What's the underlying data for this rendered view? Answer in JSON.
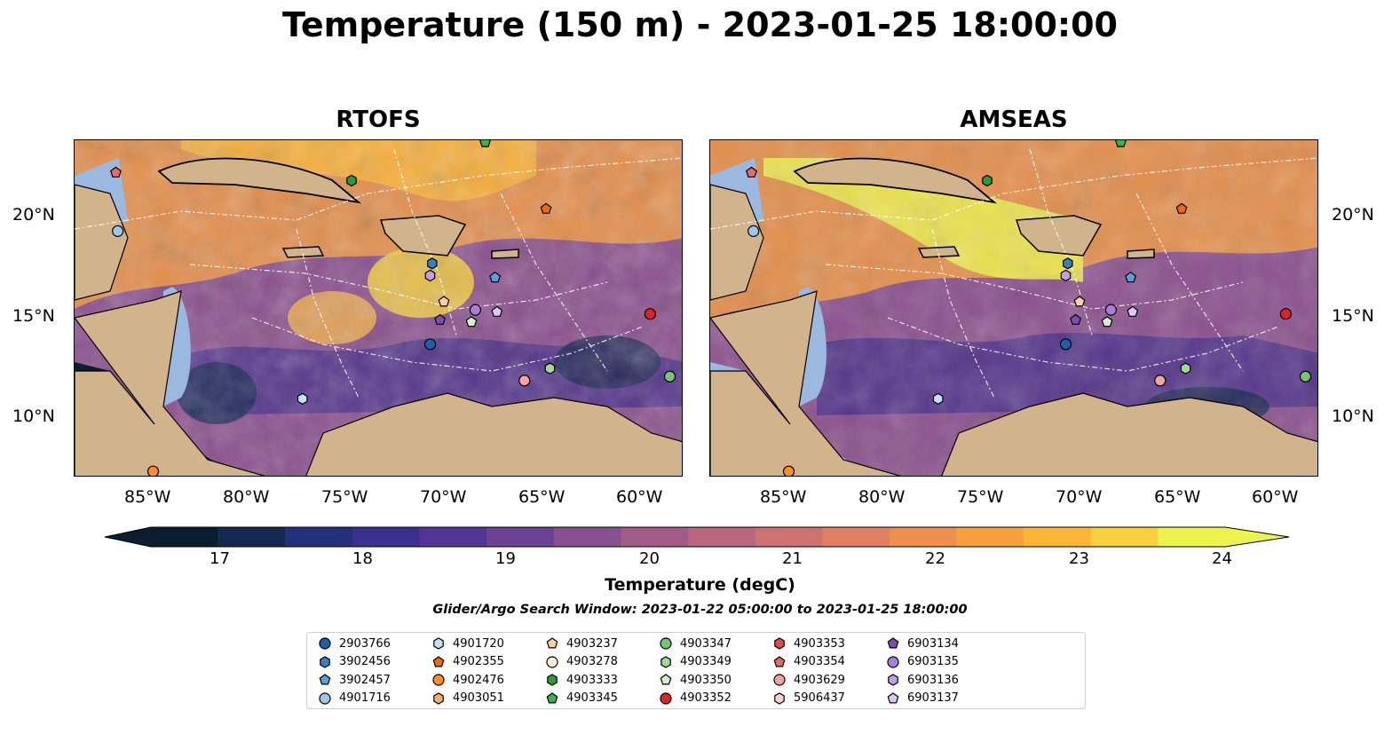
{
  "title": "Temperature (150 m) - 2023-01-25 18:00:00",
  "panels": [
    {
      "title": "RTOFS",
      "lon_ticks": [
        "85°W",
        "80°W",
        "75°W",
        "70°W",
        "65°W",
        "60°W"
      ],
      "lat_ticks": [
        "20°N",
        "15°N",
        "10°N"
      ]
    },
    {
      "title": "AMSEAS",
      "lon_ticks": [
        "85°W",
        "80°W",
        "75°W",
        "70°W",
        "65°W",
        "60°W"
      ],
      "lat_ticks": [
        "20°N",
        "15°N",
        "10°N"
      ]
    }
  ],
  "map_extent": {
    "lon": [
      -89,
      -58
    ],
    "lat": [
      7,
      23.7
    ]
  },
  "colorbar": {
    "label": "Temperature (degC)",
    "min": 17,
    "max": 24,
    "tick_labels": [
      "17",
      "18",
      "19",
      "20",
      "21",
      "22",
      "23",
      "24"
    ],
    "extend": "both"
  },
  "search_window": "Glider/Argo Search Window: 2023-01-22 05:00:00 to 2023-01-25 18:00:00",
  "legend": [
    {
      "id": "2903766",
      "marker": "circle",
      "color": "#1f5fa8"
    },
    {
      "id": "3902456",
      "marker": "hexagon",
      "color": "#3a7fc4"
    },
    {
      "id": "3902457",
      "marker": "pentagon",
      "color": "#5a9fd6"
    },
    {
      "id": "4901716",
      "marker": "circle",
      "color": "#9dc8ec"
    },
    {
      "id": "4901720",
      "marker": "hexagon",
      "color": "#c5e0f5"
    },
    {
      "id": "4902355",
      "marker": "pentagon",
      "color": "#f26a0a"
    },
    {
      "id": "4902476",
      "marker": "circle",
      "color": "#fd8d2c"
    },
    {
      "id": "4903051",
      "marker": "hexagon",
      "color": "#fdae6b"
    },
    {
      "id": "4903237",
      "marker": "pentagon",
      "color": "#fdd0a2"
    },
    {
      "id": "4903278",
      "marker": "circle",
      "color": "#feead6"
    },
    {
      "id": "4903333",
      "marker": "hexagon",
      "color": "#2a9d38"
    },
    {
      "id": "4903345",
      "marker": "pentagon",
      "color": "#3cb44b"
    },
    {
      "id": "4903347",
      "marker": "circle",
      "color": "#74c476"
    },
    {
      "id": "4903349",
      "marker": "hexagon",
      "color": "#a1d99b"
    },
    {
      "id": "4903350",
      "marker": "pentagon",
      "color": "#d1f0cc"
    },
    {
      "id": "4903352",
      "marker": "circle",
      "color": "#d62728"
    },
    {
      "id": "4903353",
      "marker": "hexagon",
      "color": "#e04b4b"
    },
    {
      "id": "4903354",
      "marker": "pentagon",
      "color": "#e96c6c"
    },
    {
      "id": "4903629",
      "marker": "circle",
      "color": "#f4a3a3"
    },
    {
      "id": "5906437",
      "marker": "hexagon",
      "color": "#fbd0d0"
    },
    {
      "id": "6903134",
      "marker": "pentagon",
      "color": "#7a4fb0"
    },
    {
      "id": "6903135",
      "marker": "circle",
      "color": "#a67fd6"
    },
    {
      "id": "6903136",
      "marker": "hexagon",
      "color": "#c0a0e6"
    },
    {
      "id": "6903137",
      "marker": "pentagon",
      "color": "#ddc8f6"
    }
  ],
  "platforms": [
    {
      "id": "2903766",
      "lon": -70.9,
      "lat": 13.6
    },
    {
      "id": "3902456",
      "lon": -70.8,
      "lat": 17.6
    },
    {
      "id": "3902457",
      "lon": -67.6,
      "lat": 16.9
    },
    {
      "id": "4901716",
      "lon": -86.8,
      "lat": 19.2
    },
    {
      "id": "4901720",
      "lon": -77.4,
      "lat": 10.9
    },
    {
      "id": "4902355",
      "lon": -65.0,
      "lat": 20.3
    },
    {
      "id": "4902476",
      "lon": -85.0,
      "lat": 7.3
    },
    {
      "id": "4903237",
      "lon": -70.2,
      "lat": 15.7
    },
    {
      "id": "4903333",
      "lon": -74.9,
      "lat": 21.7
    },
    {
      "id": "4903345",
      "lon": -68.1,
      "lat": 23.6
    },
    {
      "id": "4903347",
      "lon": -58.7,
      "lat": 12.0
    },
    {
      "id": "4903349",
      "lon": -64.8,
      "lat": 12.4
    },
    {
      "id": "4903350",
      "lon": -68.8,
      "lat": 14.7
    },
    {
      "id": "4903352",
      "lon": -59.7,
      "lat": 15.1
    },
    {
      "id": "4903354",
      "lon": -86.9,
      "lat": 22.1
    },
    {
      "id": "4903629",
      "lon": -66.1,
      "lat": 11.8
    },
    {
      "id": "6903134",
      "lon": -70.4,
      "lat": 14.8
    },
    {
      "id": "6903135",
      "lon": -68.6,
      "lat": 15.3
    },
    {
      "id": "6903136",
      "lon": -70.9,
      "lat": 17.0
    },
    {
      "id": "6903137",
      "lon": -67.5,
      "lat": 15.2
    }
  ],
  "colors": {
    "land": "#d2b48c",
    "shallow_water": "#9ab8e0",
    "colormap": [
      "#0a1e30",
      "#152a52",
      "#24307a",
      "#3b2f8f",
      "#523696",
      "#6d4294",
      "#87508e",
      "#a05c86",
      "#b8677d",
      "#cd7270",
      "#e07f62",
      "#ef8f4f",
      "#f9a03e",
      "#fcb637",
      "#f5d040",
      "#ecf24e"
    ]
  }
}
